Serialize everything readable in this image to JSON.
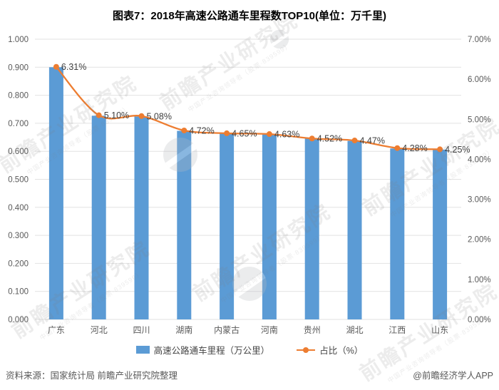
{
  "title": "图表7：2018年高速公路通车里程数TOP10(单位：万千里)",
  "chart_data": {
    "type": "bar",
    "subtype": "combo-bar-line-dual-axis",
    "title": "图表7：2018年高速公路通车里程数TOP10(单位：万千里)",
    "categories": [
      "广东",
      "河北",
      "四川",
      "湖南",
      "内蒙古",
      "河南",
      "贵州",
      "湖北",
      "江西",
      "山东"
    ],
    "series": [
      {
        "name": "高速公路通车里程（万公里）",
        "type": "bar",
        "axis": "left",
        "color": "#5B9BD5",
        "values": [
          0.9,
          0.727,
          0.724,
          0.673,
          0.663,
          0.66,
          0.645,
          0.637,
          0.61,
          0.606
        ]
      },
      {
        "name": "占比（%）",
        "type": "line",
        "axis": "right",
        "color": "#ED7D31",
        "values": [
          6.31,
          5.1,
          5.08,
          4.72,
          4.65,
          4.63,
          4.52,
          4.47,
          4.28,
          4.25
        ],
        "labels": [
          "6.31%",
          "5.10%",
          "5.08%",
          "4.72%",
          "4.65%",
          "4.63%",
          "4.52%",
          "4.47%",
          "4.28%",
          "4.25%"
        ]
      }
    ],
    "left_axis": {
      "min": 0,
      "max": 1,
      "step": 0.1,
      "tick_format": "0.000",
      "ticks": [
        "1.000",
        "0.900",
        "0.800",
        "0.700",
        "0.600",
        "0.500",
        "0.400",
        "0.300",
        "0.200",
        "0.100",
        "0.000"
      ]
    },
    "right_axis": {
      "min": 0,
      "max": 7,
      "step": 1,
      "tick_format": "0.00%",
      "ticks": [
        "7.00%",
        "6.00%",
        "5.00%",
        "4.00%",
        "3.00%",
        "2.00%",
        "1.00%",
        "0.00%"
      ]
    },
    "grid": true,
    "legend_position": "bottom"
  },
  "legend": {
    "bar_label": "高速公路通车里程（万公里）",
    "line_label": "占比（%）"
  },
  "footer": {
    "source": "资料来源：国家统计局 前瞻产业研究院整理",
    "credit": "@前瞻经济学人APP"
  },
  "watermark": {
    "text": "前瞻产业研究院",
    "subtext": "中国产业咨询领导者（股票·839599）"
  },
  "colors": {
    "bar": "#5B9BD5",
    "line": "#ED7D31",
    "grid": "#E2E2E2",
    "axis_text": "#595959",
    "title_text": "#000000",
    "label_text": "#404040",
    "footer_text": "#595959"
  }
}
